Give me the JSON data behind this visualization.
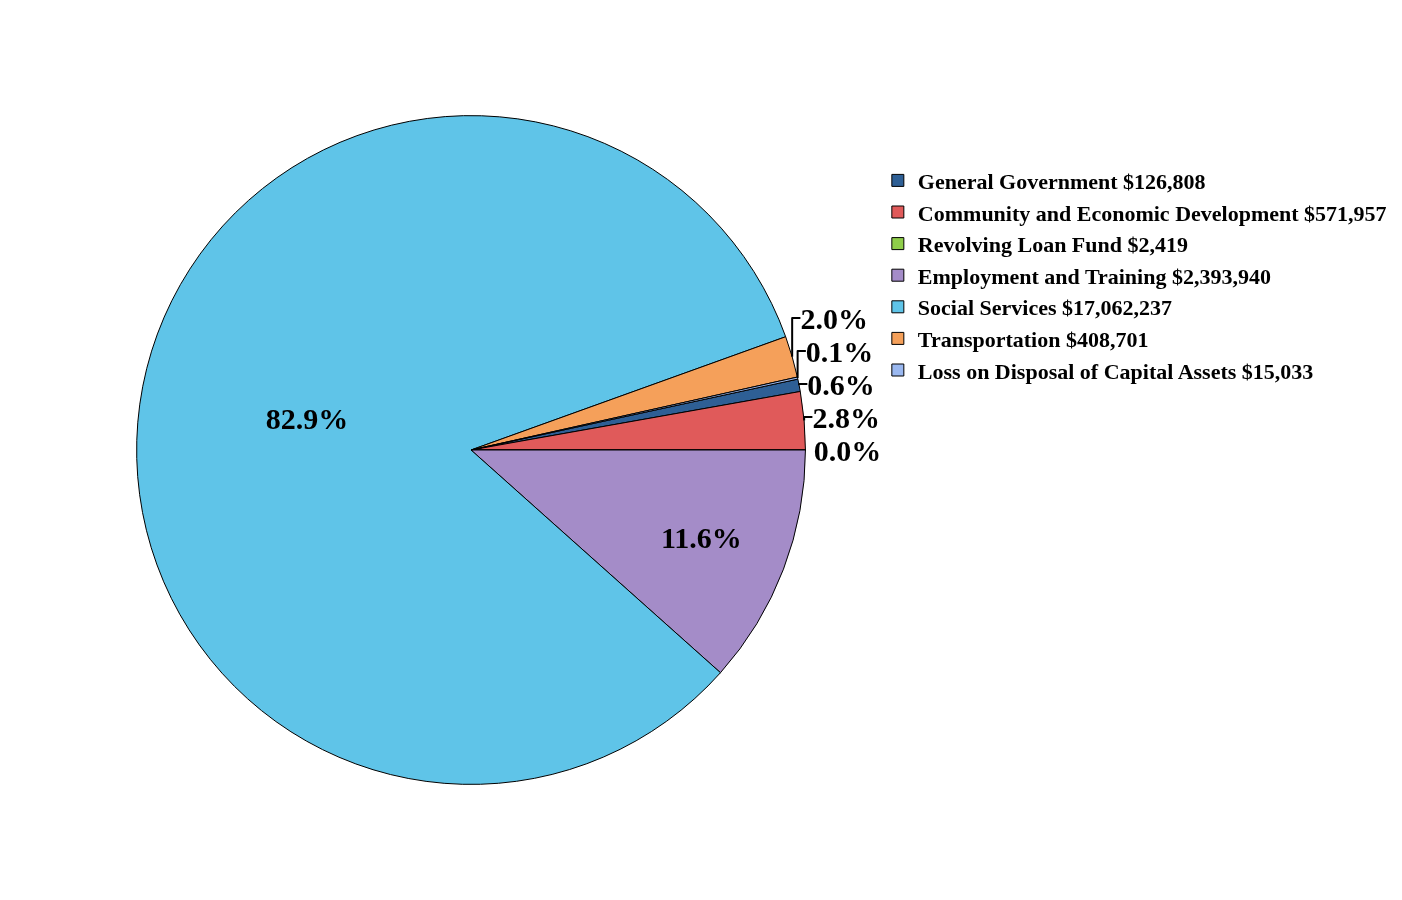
{
  "chart_data": {
    "type": "pie",
    "categories": [
      "General Government $126,808",
      "Community and Economic Development $571,957",
      "Revolving Loan Fund $2,419",
      "Employment and Training $2,393,940",
      "Social Services $17,062,237",
      "Transportation $408,701",
      "Loss on Disposal of Capital Assets $15,033"
    ],
    "values": [
      0.6,
      2.8,
      0.0,
      11.6,
      82.9,
      2.0,
      0.1
    ],
    "value_labels": [
      "0.6%",
      "2.8%",
      "0.0%",
      "11.6%",
      "82.9%",
      "2.0%",
      "0.1%"
    ],
    "colors": [
      "#2e5f95",
      "#e05a5a",
      "#8fce4a",
      "#a48cc8",
      "#5fc4e8",
      "#f5a05a",
      "#9ab8f0"
    ],
    "legend": "right"
  }
}
